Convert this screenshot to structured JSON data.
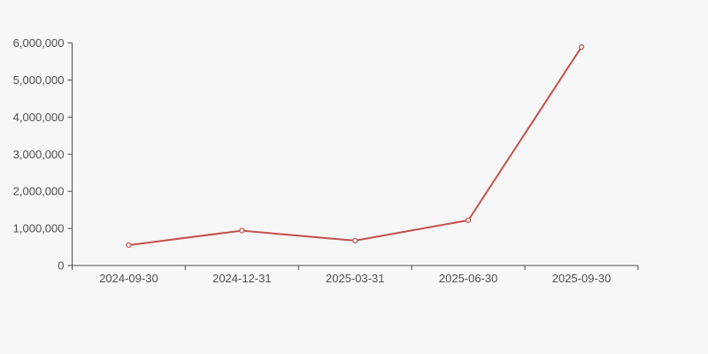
{
  "background_color": "#f7f7f7",
  "chart_data": {
    "type": "line",
    "categories": [
      "2024-09-30",
      "2024-12-31",
      "2025-03-31",
      "2025-06-30",
      "2025-09-30"
    ],
    "series": [
      {
        "name": "series-1",
        "color": "#c4504b",
        "marker": "open-circle",
        "values": [
          550000,
          940000,
          670000,
          1220000,
          5890000
        ]
      }
    ],
    "ylim": [
      0,
      6000000
    ],
    "ytick_interval": 1000000,
    "ytick_labels": [
      "0",
      "1,000,000",
      "2,000,000",
      "3,000,000",
      "4,000,000",
      "5,000,000",
      "6,000,000"
    ],
    "xlabel": "",
    "ylabel": "",
    "title": "",
    "grid": "off",
    "legend": "none",
    "axis_color": "#4d4d4d",
    "label_color": "#4f4f4f",
    "marker_fill": "#f7f7f7"
  }
}
